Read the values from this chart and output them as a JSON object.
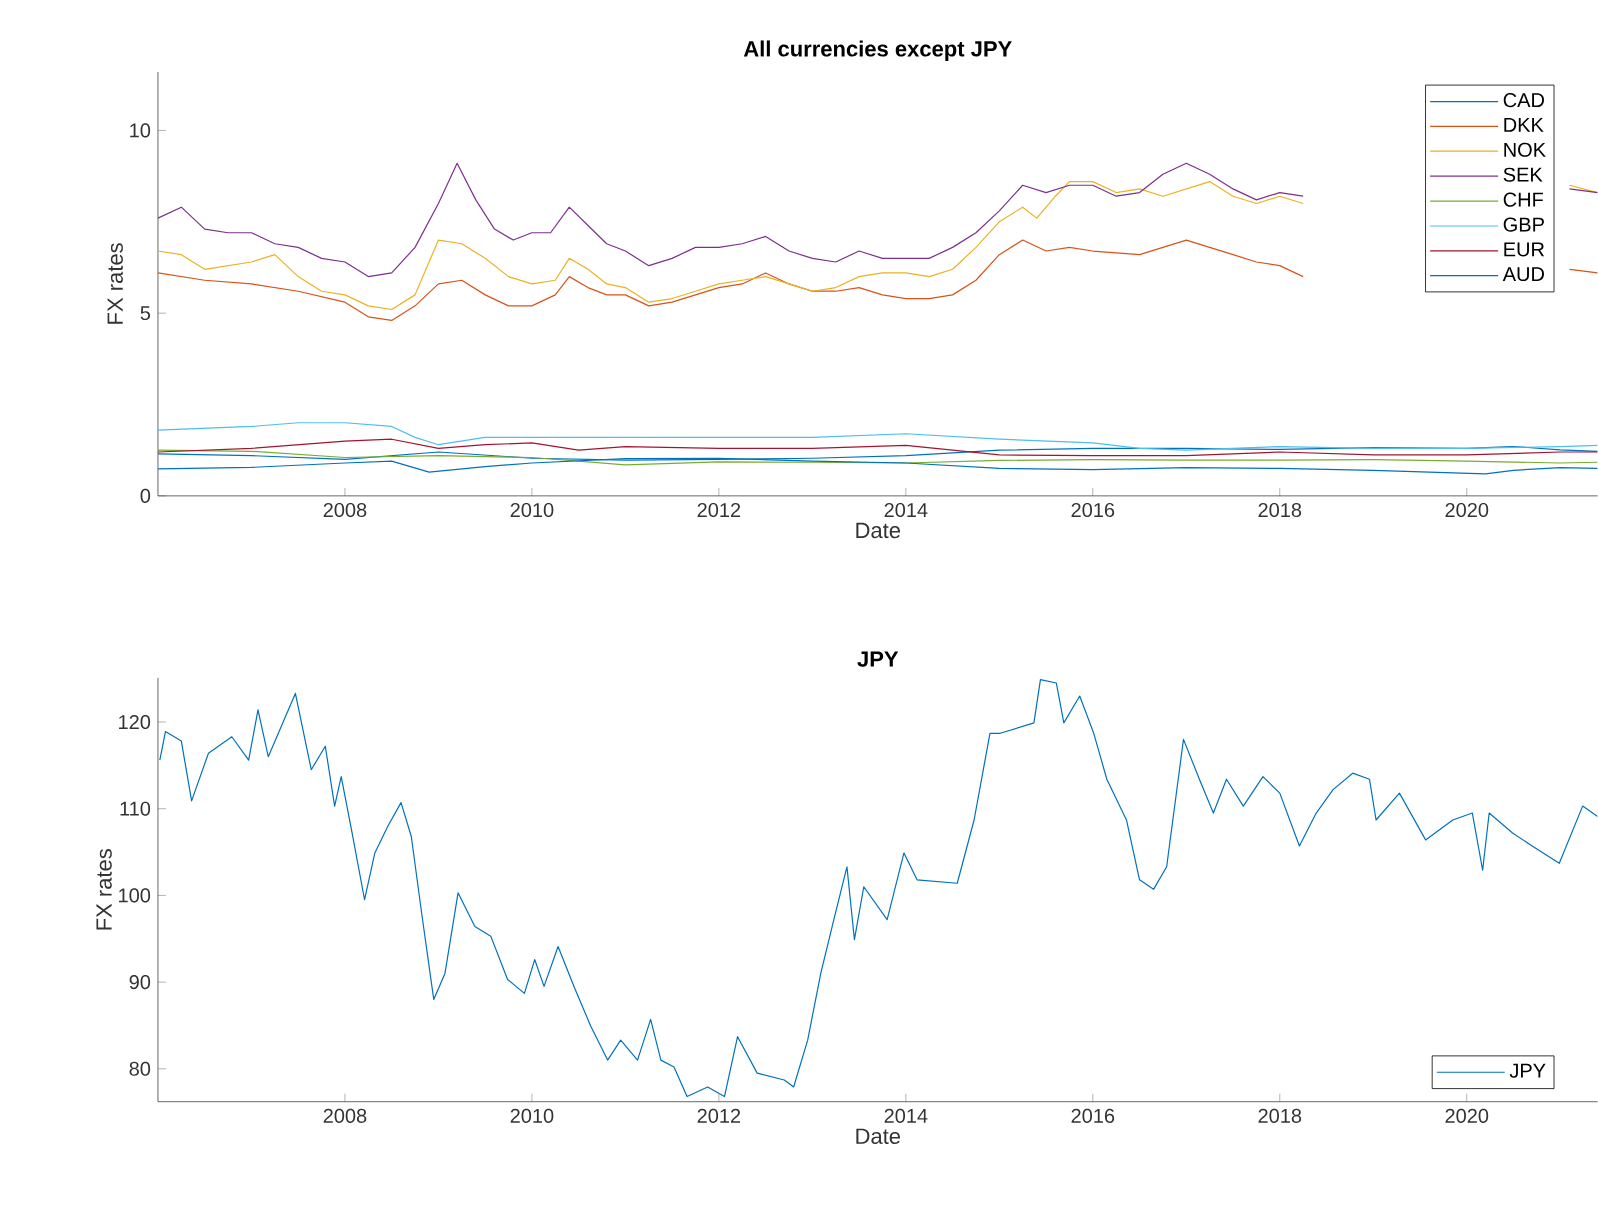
{
  "chart_data": [
    {
      "type": "line",
      "title": "All currencies except JPY",
      "xlabel": "Date",
      "ylabel": "FX rates",
      "xlim": [
        2006.0,
        2021.4
      ],
      "ylim": [
        0,
        11.6
      ],
      "xticks": [
        2008,
        2010,
        2012,
        2014,
        2016,
        2018,
        2020
      ],
      "yticks": [
        0,
        5,
        10
      ],
      "legend": "top right",
      "series": [
        {
          "name": "CAD",
          "color": "#0072bd",
          "x": [
            2006.0,
            2007.0,
            2008.0,
            2009.0,
            2010.0,
            2011.0,
            2012.0,
            2013.0,
            2014.0,
            2015.0,
            2016.0,
            2017.0,
            2018.0,
            2019.0,
            2020.0,
            2020.5,
            2021.0,
            2021.4
          ],
          "values": [
            1.15,
            1.1,
            1.0,
            1.2,
            1.03,
            0.98,
            1.0,
            1.03,
            1.1,
            1.25,
            1.3,
            1.3,
            1.27,
            1.32,
            1.3,
            1.35,
            1.26,
            1.22
          ]
        },
        {
          "name": "DKK",
          "color": "#d95319",
          "x": [
            2006.0,
            2006.5,
            2007.0,
            2007.5,
            2008.0,
            2008.25,
            2008.5,
            2008.75,
            2009.0,
            2009.25,
            2009.5,
            2009.75,
            2010.0,
            2010.25,
            2010.4,
            2010.6,
            2010.8,
            2011.0,
            2011.25,
            2011.5,
            2011.75,
            2012.0,
            2012.25,
            2012.5,
            2012.75,
            2013.0,
            2013.25,
            2013.5,
            2013.75,
            2014.0,
            2014.25,
            2014.5,
            2014.75,
            2015.0,
            2015.25,
            2015.5,
            2015.75,
            2016.0,
            2016.5,
            2016.75,
            2017.0,
            2017.25,
            2017.5,
            2017.75,
            2018.0,
            2018.25,
            2019.5,
            2021.1,
            2021.4
          ],
          "values": [
            6.1,
            5.9,
            5.8,
            5.6,
            5.3,
            4.9,
            4.8,
            5.2,
            5.8,
            5.9,
            5.5,
            5.2,
            5.2,
            5.5,
            6.0,
            5.7,
            5.5,
            5.5,
            5.2,
            5.3,
            5.5,
            5.7,
            5.8,
            6.1,
            5.8,
            5.6,
            5.6,
            5.7,
            5.5,
            5.4,
            5.4,
            5.5,
            5.9,
            6.6,
            7.0,
            6.7,
            6.8,
            6.7,
            6.6,
            6.8,
            7.0,
            6.8,
            6.6,
            6.4,
            6.3,
            6.0,
            null,
            6.2,
            6.1
          ]
        },
        {
          "name": "NOK",
          "color": "#edb120",
          "x": [
            2006.0,
            2006.25,
            2006.5,
            2007.0,
            2007.25,
            2007.5,
            2007.75,
            2008.0,
            2008.25,
            2008.5,
            2008.75,
            2009.0,
            2009.25,
            2009.5,
            2009.75,
            2010.0,
            2010.25,
            2010.4,
            2010.6,
            2010.8,
            2011.0,
            2011.25,
            2011.5,
            2011.75,
            2012.0,
            2012.25,
            2012.5,
            2012.75,
            2013.0,
            2013.25,
            2013.5,
            2013.75,
            2014.0,
            2014.25,
            2014.5,
            2014.75,
            2015.0,
            2015.25,
            2015.4,
            2015.6,
            2015.75,
            2016.0,
            2016.25,
            2016.5,
            2016.75,
            2017.0,
            2017.25,
            2017.5,
            2017.75,
            2018.0,
            2018.25,
            2019.5,
            2021.1,
            2021.4
          ],
          "values": [
            6.7,
            6.6,
            6.2,
            6.4,
            6.6,
            6.0,
            5.6,
            5.5,
            5.2,
            5.1,
            5.5,
            7.0,
            6.9,
            6.5,
            6.0,
            5.8,
            5.9,
            6.5,
            6.2,
            5.8,
            5.7,
            5.3,
            5.4,
            5.6,
            5.8,
            5.9,
            6.0,
            5.8,
            5.6,
            5.7,
            6.0,
            6.1,
            6.1,
            6.0,
            6.2,
            6.8,
            7.5,
            7.9,
            7.6,
            8.2,
            8.6,
            8.6,
            8.3,
            8.4,
            8.2,
            8.4,
            8.6,
            8.2,
            8.0,
            8.2,
            8.0,
            null,
            8.5,
            8.3
          ]
        },
        {
          "name": "SEK",
          "color": "#7e2f8e",
          "x": [
            2006.0,
            2006.25,
            2006.5,
            2006.75,
            2007.0,
            2007.25,
            2007.5,
            2007.75,
            2008.0,
            2008.25,
            2008.5,
            2008.75,
            2009.0,
            2009.2,
            2009.4,
            2009.6,
            2009.8,
            2010.0,
            2010.2,
            2010.4,
            2010.6,
            2010.8,
            2011.0,
            2011.25,
            2011.5,
            2011.75,
            2012.0,
            2012.25,
            2012.5,
            2012.75,
            2013.0,
            2013.25,
            2013.5,
            2013.75,
            2014.0,
            2014.25,
            2014.5,
            2014.75,
            2015.0,
            2015.25,
            2015.5,
            2015.75,
            2016.0,
            2016.25,
            2016.5,
            2016.75,
            2017.0,
            2017.25,
            2017.5,
            2017.75,
            2018.0,
            2018.25,
            2019.5,
            2021.1,
            2021.4
          ],
          "values": [
            7.6,
            7.9,
            7.3,
            7.2,
            7.2,
            6.9,
            6.8,
            6.5,
            6.4,
            6.0,
            6.1,
            6.8,
            8.0,
            9.1,
            8.1,
            7.3,
            7.0,
            7.2,
            7.2,
            7.9,
            7.4,
            6.9,
            6.7,
            6.3,
            6.5,
            6.8,
            6.8,
            6.9,
            7.1,
            6.7,
            6.5,
            6.4,
            6.7,
            6.5,
            6.5,
            6.5,
            6.8,
            7.2,
            7.8,
            8.5,
            8.3,
            8.5,
            8.5,
            8.2,
            8.3,
            8.8,
            9.1,
            8.8,
            8.4,
            8.1,
            8.3,
            8.2,
            null,
            8.4,
            8.3
          ]
        },
        {
          "name": "CHF",
          "color": "#77ac30",
          "x": [
            2006.0,
            2007.0,
            2008.0,
            2009.0,
            2010.0,
            2011.0,
            2012.0,
            2013.0,
            2014.0,
            2015.0,
            2016.0,
            2017.0,
            2018.0,
            2019.0,
            2020.0,
            2021.0,
            2021.4
          ],
          "values": [
            1.25,
            1.22,
            1.05,
            1.1,
            1.05,
            0.85,
            0.93,
            0.92,
            0.9,
            0.97,
            0.99,
            0.98,
            0.98,
            0.99,
            0.95,
            0.9,
            0.92
          ]
        },
        {
          "name": "GBP",
          "color": "#4dbeee",
          "x": [
            2006.0,
            2007.0,
            2007.5,
            2008.0,
            2008.5,
            2008.75,
            2009.0,
            2009.5,
            2010.0,
            2011.0,
            2012.0,
            2013.0,
            2014.0,
            2015.0,
            2016.0,
            2016.5,
            2017.0,
            2018.0,
            2019.0,
            2020.0,
            2021.0,
            2021.4
          ],
          "values": [
            1.8,
            1.9,
            2.0,
            2.0,
            1.9,
            1.6,
            1.4,
            1.6,
            1.6,
            1.6,
            1.6,
            1.6,
            1.7,
            1.55,
            1.45,
            1.3,
            1.25,
            1.35,
            1.3,
            1.3,
            1.35,
            1.38
          ]
        },
        {
          "name": "EUR",
          "color": "#a2142f",
          "x": [
            2006.0,
            2007.0,
            2008.0,
            2008.5,
            2009.0,
            2009.5,
            2010.0,
            2010.5,
            2011.0,
            2012.0,
            2013.0,
            2014.0,
            2015.0,
            2016.0,
            2017.0,
            2018.0,
            2019.0,
            2020.0,
            2021.0,
            2021.4
          ],
          "values": [
            1.2,
            1.3,
            1.5,
            1.55,
            1.3,
            1.4,
            1.45,
            1.25,
            1.35,
            1.3,
            1.3,
            1.38,
            1.12,
            1.1,
            1.1,
            1.2,
            1.12,
            1.12,
            1.2,
            1.2
          ]
        },
        {
          "name": "AUD",
          "color": "#0072bd",
          "x": [
            2006.0,
            2007.0,
            2008.0,
            2008.5,
            2008.9,
            2009.5,
            2010.0,
            2011.0,
            2012.0,
            2013.0,
            2014.0,
            2015.0,
            2016.0,
            2017.0,
            2018.0,
            2019.0,
            2020.2,
            2020.5,
            2021.0,
            2021.4
          ],
          "values": [
            0.74,
            0.78,
            0.9,
            0.95,
            0.65,
            0.8,
            0.9,
            1.02,
            1.03,
            0.95,
            0.9,
            0.75,
            0.72,
            0.77,
            0.75,
            0.7,
            0.6,
            0.7,
            0.77,
            0.75
          ]
        }
      ]
    },
    {
      "type": "line",
      "title": "JPY",
      "xlabel": "Date",
      "ylabel": "FX rates",
      "xlim": [
        2006.0,
        2021.4
      ],
      "ylim": [
        76.2,
        125.1
      ],
      "xticks": [
        2008,
        2010,
        2012,
        2014,
        2016,
        2018,
        2020
      ],
      "yticks": [
        80,
        90,
        100,
        110,
        120
      ],
      "legend": "bottom right",
      "series": [
        {
          "name": "JPY",
          "color": "#0072bd",
          "x": [
            2006.02,
            2006.08,
            2006.25,
            2006.36,
            2006.54,
            2006.79,
            2006.97,
            2007.07,
            2007.18,
            2007.47,
            2007.64,
            2007.79,
            2007.89,
            2007.96,
            2008.07,
            2008.21,
            2008.32,
            2008.46,
            2008.6,
            2008.71,
            2008.82,
            2008.95,
            2009.07,
            2009.21,
            2009.39,
            2009.56,
            2009.74,
            2009.92,
            2010.03,
            2010.13,
            2010.28,
            2010.45,
            2010.63,
            2010.81,
            2010.95,
            2011.13,
            2011.27,
            2011.38,
            2011.52,
            2011.66,
            2011.88,
            2012.06,
            2012.2,
            2012.41,
            2012.7,
            2012.8,
            2012.95,
            2013.09,
            2013.23,
            2013.37,
            2013.45,
            2013.55,
            2013.8,
            2013.98,
            2014.12,
            2014.55,
            2014.73,
            2014.9,
            2015.01,
            2015.37,
            2015.44,
            2015.61,
            2015.69,
            2015.86,
            2016.01,
            2016.15,
            2016.36,
            2016.5,
            2016.65,
            2016.79,
            2016.97,
            2017.14,
            2017.29,
            2017.43,
            2017.61,
            2017.82,
            2018.0,
            2018.21,
            2018.39,
            2018.57,
            2018.78,
            2018.96,
            2019.03,
            2019.28,
            2019.56,
            2019.85,
            2020.06,
            2020.17,
            2020.24,
            2020.49,
            2020.7,
            2020.99,
            2021.24,
            2021.4
          ],
          "values": [
            115.6,
            118.9,
            117.8,
            110.9,
            116.4,
            118.3,
            115.6,
            121.4,
            116.0,
            123.3,
            114.5,
            117.2,
            110.3,
            113.7,
            107.6,
            99.5,
            104.9,
            108.0,
            110.7,
            106.8,
            98.0,
            88.0,
            91.0,
            100.3,
            96.4,
            95.3,
            90.3,
            88.7,
            92.6,
            89.5,
            94.1,
            89.5,
            84.9,
            81.0,
            83.3,
            81.0,
            85.7,
            81.0,
            80.2,
            76.8,
            77.9,
            76.8,
            83.7,
            79.5,
            78.7,
            77.9,
            83.3,
            91.0,
            97.2,
            103.3,
            94.9,
            101.0,
            97.2,
            104.9,
            101.8,
            101.4,
            108.7,
            118.7,
            118.7,
            119.9,
            124.9,
            124.5,
            119.9,
            123.0,
            118.7,
            113.4,
            108.7,
            101.8,
            100.7,
            103.3,
            118.0,
            113.4,
            109.5,
            113.4,
            110.3,
            113.7,
            111.8,
            105.7,
            109.5,
            112.2,
            114.1,
            113.4,
            108.7,
            111.8,
            106.4,
            108.7,
            109.5,
            102.9,
            109.5,
            107.2,
            105.7,
            103.7,
            110.3,
            109.1
          ]
        }
      ]
    }
  ]
}
